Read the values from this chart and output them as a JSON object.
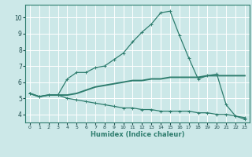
{
  "xlabel": "Humidex (Indice chaleur)",
  "bg_color": "#cce8e8",
  "line_color": "#2e7d6e",
  "grid_color": "#ffffff",
  "xlim": [
    -0.5,
    23.5
  ],
  "ylim": [
    3.5,
    10.8
  ],
  "yticks": [
    4,
    5,
    6,
    7,
    8,
    9,
    10
  ],
  "xticks": [
    0,
    1,
    2,
    3,
    4,
    5,
    6,
    7,
    8,
    9,
    10,
    11,
    12,
    13,
    14,
    15,
    16,
    17,
    18,
    19,
    20,
    21,
    22,
    23
  ],
  "line1_x": [
    0,
    1,
    2,
    3,
    4,
    5,
    6,
    7,
    8,
    9,
    10,
    11,
    12,
    13,
    14,
    15,
    16,
    17,
    18,
    19,
    20,
    21,
    22,
    23
  ],
  "line1_y": [
    5.3,
    5.1,
    5.2,
    5.2,
    6.2,
    6.6,
    6.6,
    6.9,
    7.0,
    7.4,
    7.8,
    8.5,
    9.1,
    9.6,
    10.3,
    10.4,
    8.9,
    7.5,
    6.2,
    6.4,
    6.5,
    4.6,
    3.9,
    3.7
  ],
  "line2_x": [
    0,
    1,
    2,
    3,
    4,
    5,
    6,
    7,
    8,
    9,
    10,
    11,
    12,
    13,
    14,
    15,
    16,
    17,
    18,
    19,
    20,
    21,
    22,
    23
  ],
  "line2_y": [
    5.3,
    5.1,
    5.2,
    5.2,
    5.2,
    5.3,
    5.5,
    5.7,
    5.8,
    5.9,
    6.0,
    6.1,
    6.1,
    6.2,
    6.2,
    6.3,
    6.3,
    6.3,
    6.3,
    6.4,
    6.4,
    6.4,
    6.4,
    6.4
  ],
  "line3_x": [
    0,
    1,
    2,
    3,
    4,
    5,
    6,
    7,
    8,
    9,
    10,
    11,
    12,
    13,
    14,
    15,
    16,
    17,
    18,
    19,
    20,
    21,
    22,
    23
  ],
  "line3_y": [
    5.3,
    5.1,
    5.2,
    5.2,
    5.0,
    4.9,
    4.8,
    4.7,
    4.6,
    4.5,
    4.4,
    4.4,
    4.3,
    4.3,
    4.2,
    4.2,
    4.2,
    4.2,
    4.1,
    4.1,
    4.0,
    4.0,
    3.9,
    3.8
  ]
}
